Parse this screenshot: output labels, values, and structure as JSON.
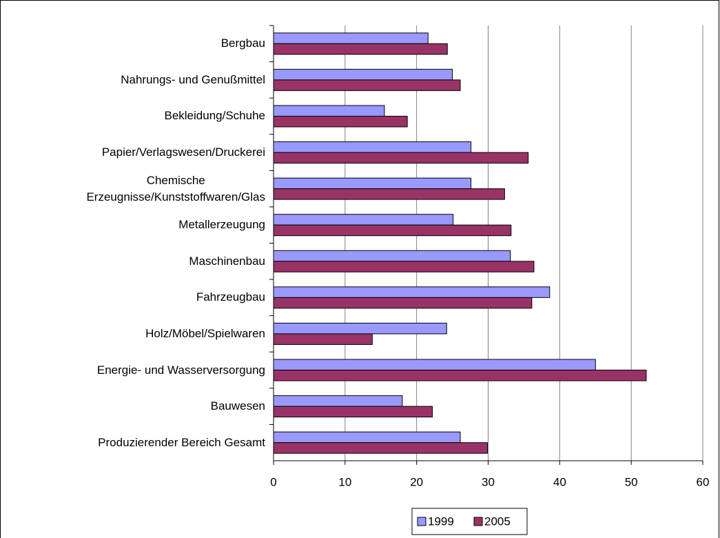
{
  "chart_data": {
    "type": "bar",
    "orientation": "horizontal",
    "categories": [
      "Bergbau",
      "Nahrungs- und Genußmittel",
      "Bekleidung/Schuhe",
      "Papier/Verlagswesen/Druckerei",
      "Chemische\nErzeugnisse/Kunststoffwaren/Glas",
      "Metallerzeugung",
      "Maschinenbau",
      "Fahrzeugbau",
      "Holz/Möbel/Spielwaren",
      "Energie- und Wasserversorgung",
      "Bauwesen",
      "Produzierender Bereich Gesamt"
    ],
    "series": [
      {
        "name": "1999",
        "color": "#9999ff",
        "values": [
          21.6,
          25.0,
          15.5,
          27.6,
          27.6,
          25.1,
          33.1,
          38.6,
          24.2,
          45.0,
          18.0,
          26.1
        ]
      },
      {
        "name": "2005",
        "color": "#993366",
        "values": [
          24.3,
          26.1,
          18.7,
          35.6,
          32.3,
          33.2,
          36.4,
          36.1,
          13.8,
          52.1,
          22.2,
          29.9
        ]
      }
    ],
    "xlim": [
      0,
      60
    ],
    "xticks": [
      0,
      10,
      20,
      30,
      40,
      50,
      60
    ],
    "grid": true,
    "legend": "bottom"
  }
}
